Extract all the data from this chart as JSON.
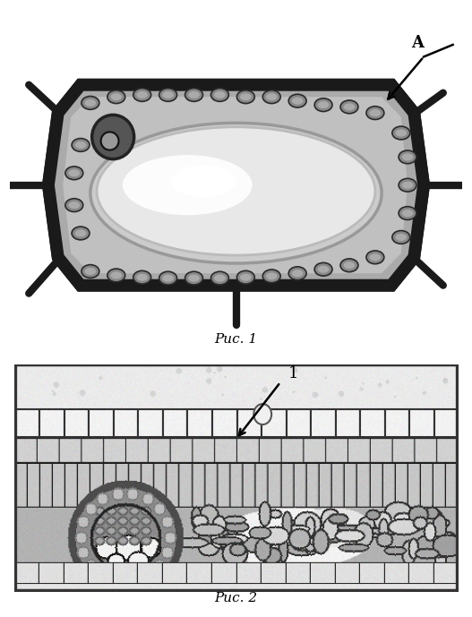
{
  "fig_width": 5.27,
  "fig_height": 6.89,
  "dpi": 100,
  "bg_color": "#ffffff",
  "fig1_caption": "Рис. 1",
  "fig2_caption": "Рис. 2",
  "label_A": "A",
  "label_1": "1"
}
